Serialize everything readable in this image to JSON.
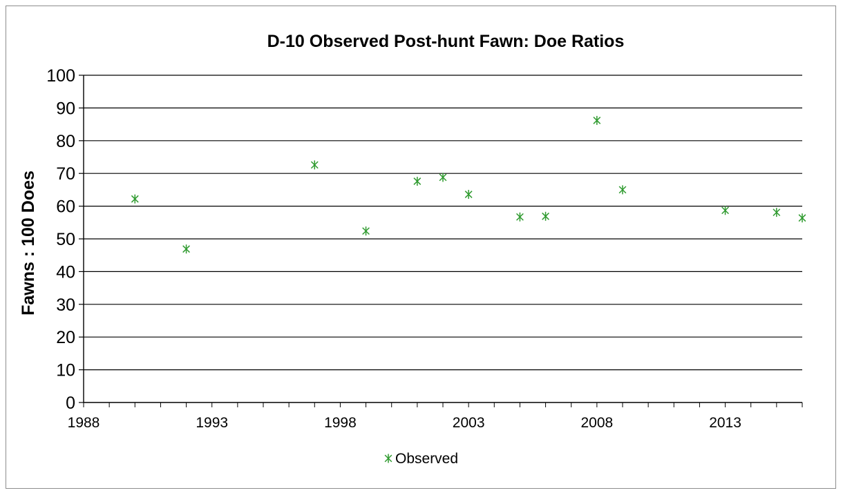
{
  "chart_data": {
    "type": "scatter",
    "title": "D-10 Observed Post-hunt Fawn: Doe Ratios",
    "xlabel": "",
    "ylabel": "Fawns : 100 Does",
    "xlim": [
      1988,
      2016
    ],
    "ylim": [
      0,
      100
    ],
    "x_ticks": [
      1988,
      1993,
      1998,
      2003,
      2008,
      2013
    ],
    "y_ticks": [
      0,
      10,
      20,
      30,
      40,
      50,
      60,
      70,
      80,
      90,
      100
    ],
    "grid": "horizontal",
    "legend": "bottom-center",
    "marker": "asterisk",
    "series": [
      {
        "name": "Observed",
        "color": "#2e9a2e",
        "x": [
          1990,
          1992,
          1997,
          1999,
          2001,
          2002,
          2003,
          2005,
          2006,
          2008,
          2009,
          2013,
          2015,
          2016
        ],
        "y": [
          62.2,
          46.9,
          72.6,
          52.4,
          67.6,
          68.8,
          63.6,
          56.7,
          56.9,
          86.2,
          65.0,
          58.7,
          58.1,
          56.4
        ]
      }
    ]
  }
}
